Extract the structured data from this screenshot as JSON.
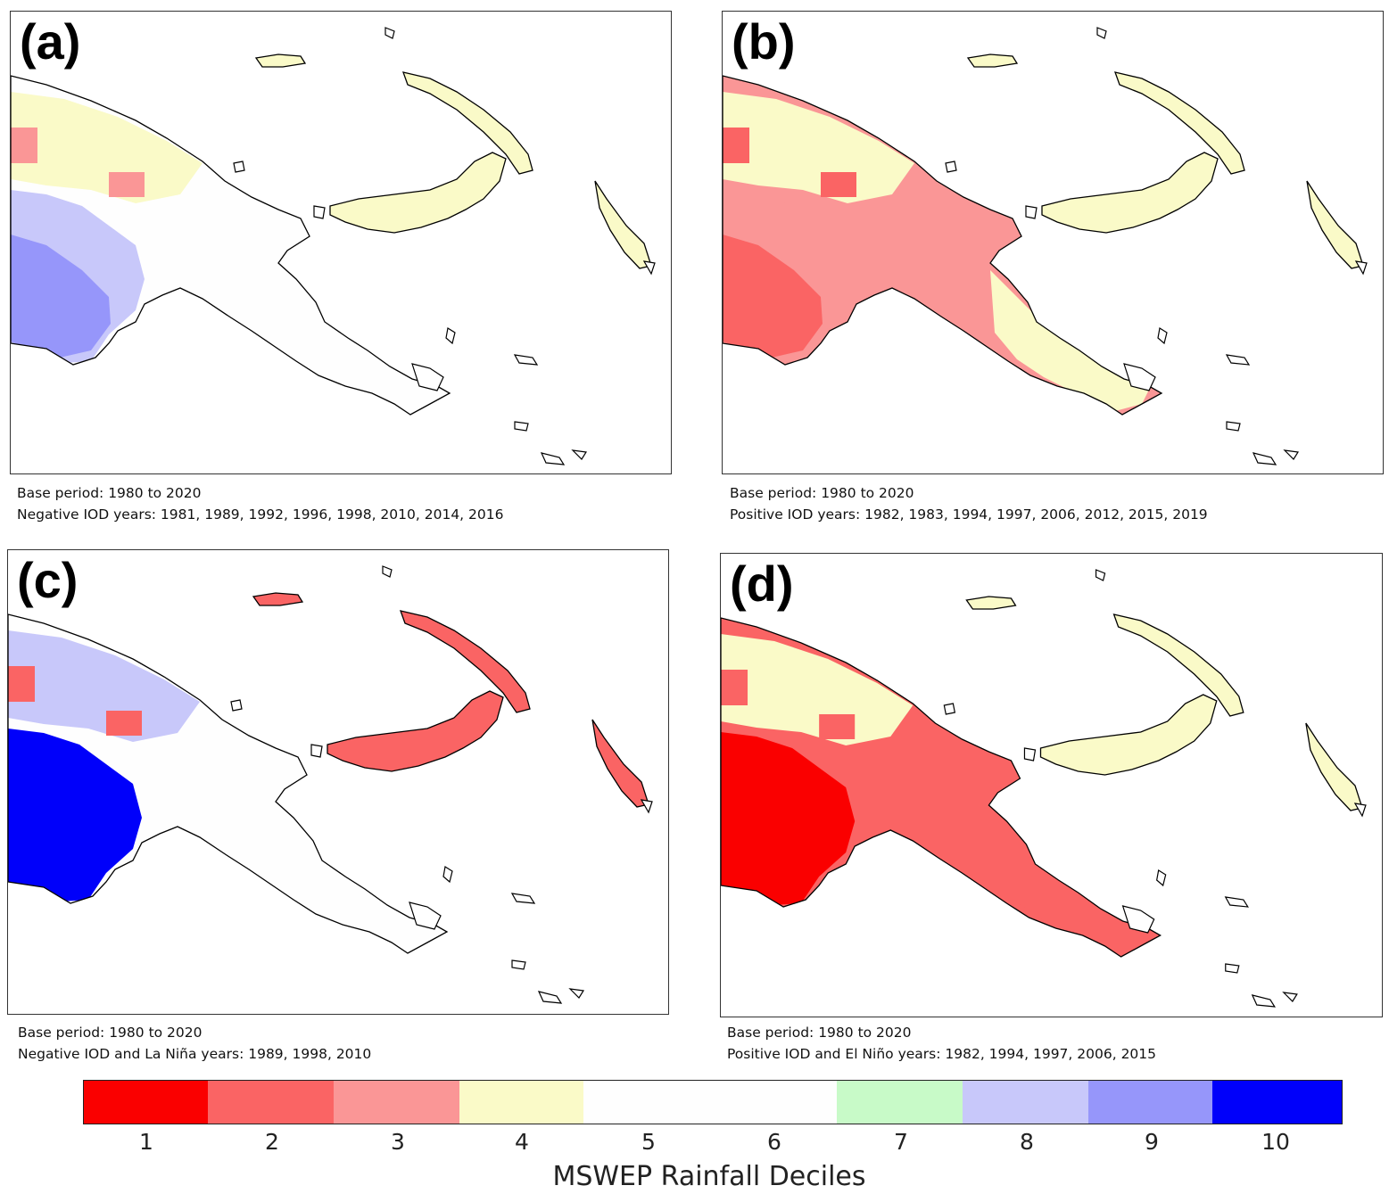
{
  "colors": {
    "d1": "#fa0000",
    "d2": "#fa6464",
    "d3": "#fa9696",
    "d4": "#fafac8",
    "d5": "#fefefe",
    "d6": "#fefefe",
    "d7": "#c8fac8",
    "d8": "#c8c8fa",
    "d9": "#9696fa",
    "d10": "#0000fa",
    "coast": "#000000"
  },
  "panels": [
    {
      "letter": "(a)",
      "base_period": "Base period: 1980 to 2020",
      "years": "Negative IOD years: 1981, 1989, 1992, 1996, 1998, 2010, 2014, 2016",
      "mainland_fill": "d5",
      "west_fill": "d8",
      "west_inner_fill": "d9",
      "north_fill": "d4",
      "east_fill": "d5",
      "islands_fill": "d4",
      "hotspot_fill": "d3"
    },
    {
      "letter": "(b)",
      "base_period": "Base period: 1980 to 2020",
      "years": "Positive IOD years: 1982, 1983, 1994, 1997, 2006, 2012, 2015, 2019",
      "mainland_fill": "d3",
      "west_fill": "d3",
      "west_inner_fill": "d2",
      "north_fill": "d4",
      "east_fill": "d4",
      "islands_fill": "d4",
      "hotspot_fill": "d2"
    },
    {
      "letter": "(c)",
      "base_period": "Base period: 1980 to 2020",
      "years": "Negative IOD and La Niña years: 1989, 1998, 2010",
      "mainland_fill": "d5",
      "west_fill": "d10",
      "west_inner_fill": "d10",
      "north_fill": "d8",
      "east_fill": "d5",
      "islands_fill": "d2",
      "hotspot_fill": "d2"
    },
    {
      "letter": "(d)",
      "base_period": "Base period: 1980 to 2020",
      "years": "Positive IOD and El Niño years: 1982, 1994, 1997, 2006, 2015",
      "mainland_fill": "d2",
      "west_fill": "d1",
      "west_inner_fill": "d1",
      "north_fill": "d4",
      "east_fill": "d2",
      "islands_fill": "d4",
      "hotspot_fill": "d2"
    }
  ],
  "colorbar": {
    "ticks": [
      "1",
      "2",
      "3",
      "4",
      "5",
      "6",
      "7",
      "8",
      "9",
      "10"
    ],
    "segments": [
      "d1",
      "d2",
      "d3",
      "d4",
      "d5",
      "d6",
      "d7",
      "d8",
      "d9",
      "d10"
    ],
    "label": "MSWEP Rainfall Deciles"
  }
}
